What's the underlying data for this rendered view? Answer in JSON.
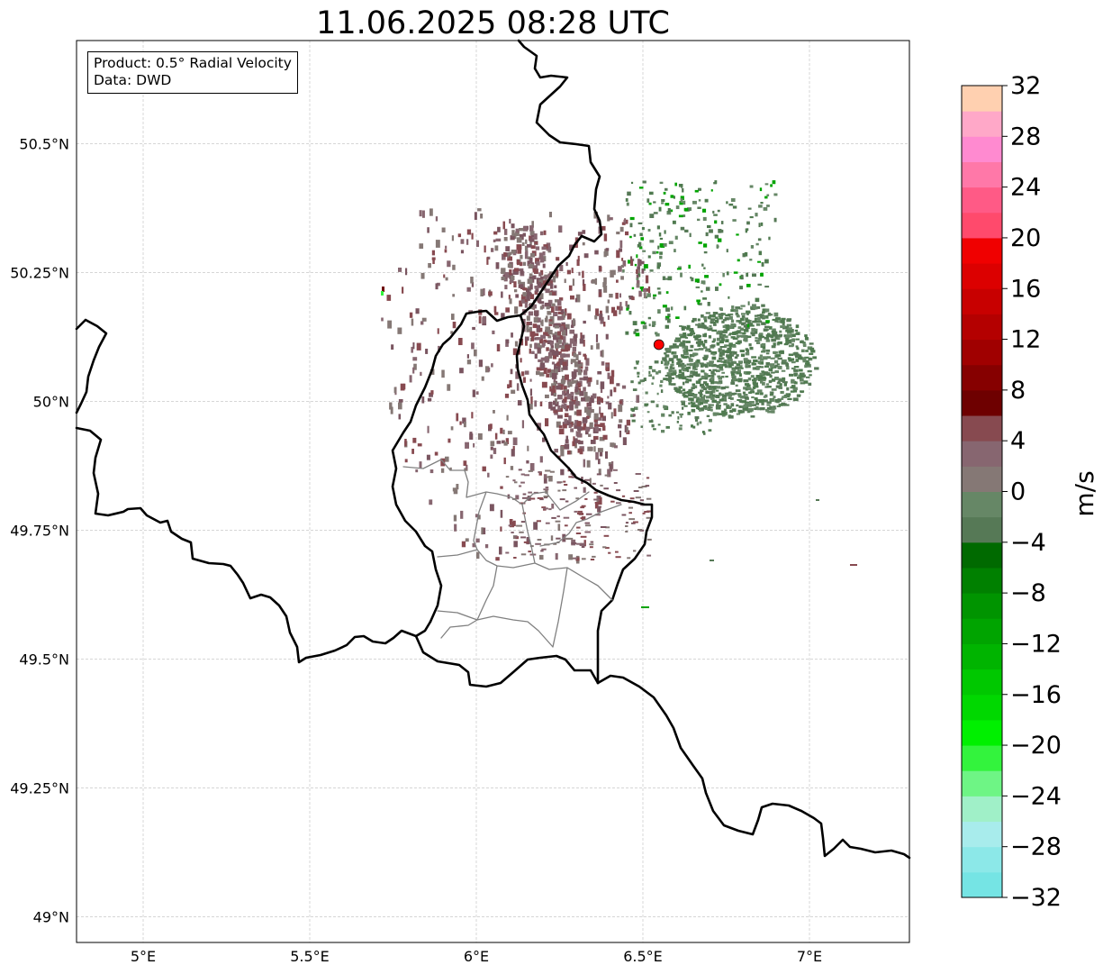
{
  "title": "11.06.2025 08:28 UTC",
  "info_box": {
    "product": "Product: 0.5° Radial Velocity",
    "data": "Data: DWD"
  },
  "map": {
    "extent": {
      "lon": [
        4.8,
        7.3
      ],
      "lat": [
        48.95,
        50.7
      ]
    },
    "lon_ticks": [
      {
        "v": 5.0,
        "label": "5°E"
      },
      {
        "v": 5.5,
        "label": "5.5°E"
      },
      {
        "v": 6.0,
        "label": "6°E"
      },
      {
        "v": 6.5,
        "label": "6.5°E"
      },
      {
        "v": 7.0,
        "label": "7°E"
      }
    ],
    "lat_ticks": [
      {
        "v": 49.0,
        "label": "49°N"
      },
      {
        "v": 49.25,
        "label": "49.25°N"
      },
      {
        "v": 49.5,
        "label": "49.5°N"
      },
      {
        "v": 49.75,
        "label": "49.75°N"
      },
      {
        "v": 50.0,
        "label": "50°N"
      },
      {
        "v": 50.25,
        "label": "50.25°N"
      },
      {
        "v": 50.5,
        "label": "50.5°N"
      }
    ],
    "gridlines": true,
    "radar_site": {
      "lon": 6.548,
      "lat": 50.11,
      "color": "#ff0000"
    }
  },
  "colorbar": {
    "label": "m/s",
    "vmin": -32,
    "vmax": 32,
    "tick_labels": [
      "−32",
      "−28",
      "−24",
      "−20",
      "−16",
      "−12",
      "−8",
      "−4",
      "0",
      "4",
      "8",
      "12",
      "16",
      "20",
      "24",
      "28",
      "32"
    ],
    "colors": [
      "#75e4e4",
      "#8ce8e8",
      "#a8ecec",
      "#a0f0c8",
      "#6ef585",
      "#33f33d",
      "#00f000",
      "#00d800",
      "#00c800",
      "#00b400",
      "#00a400",
      "#009400",
      "#008000",
      "#006a00",
      "#567956",
      "#668766",
      "#857875",
      "#876670",
      "#874a50",
      "#6e0000",
      "#860000",
      "#a00000",
      "#b40000",
      "#c80000",
      "#dc0000",
      "#f00000",
      "#ff4a6c",
      "#ff5a86",
      "#ff78a8",
      "#ff8ad0",
      "#ffa8c8",
      "#ffd0b0"
    ]
  }
}
